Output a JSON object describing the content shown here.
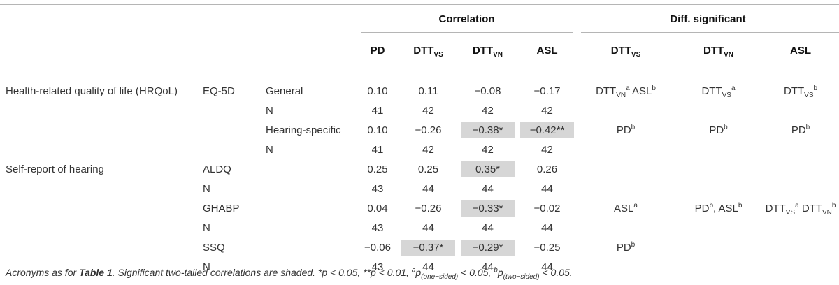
{
  "header": {
    "group_correlation": "Correlation",
    "group_diff": "Diff. significant",
    "columns": {
      "pd": "PD",
      "dtt": "DTT",
      "sub_vs": "VS",
      "sub_vn": "VN",
      "asl": "ASL"
    }
  },
  "rows": {
    "hrqol": {
      "label": "Health-related quality of life (HRQoL)",
      "measure": "EQ-5D",
      "general": {
        "label": "General",
        "pd": "0.10",
        "dtt_vs": "0.11",
        "dtt_vn": "−0.08",
        "asl": "−0.17"
      },
      "general_n": {
        "label": "N",
        "pd": "41",
        "dtt_vs": "42",
        "dtt_vn": "42",
        "asl": "42"
      },
      "hearing": {
        "label": "Hearing-specific",
        "pd": "0.10",
        "dtt_vs": "−0.26",
        "dtt_vn": "−0.38*",
        "asl": "−0.42**"
      },
      "hearing_n": {
        "label": "N",
        "pd": "41",
        "dtt_vs": "42",
        "dtt_vn": "42",
        "asl": "42"
      }
    },
    "selfreport": {
      "label": "Self-report of hearing",
      "aldq": {
        "label": "ALDQ",
        "pd": "0.25",
        "dtt_vs": "0.25",
        "dtt_vn": "0.35*",
        "asl": "0.26"
      },
      "aldq_n": {
        "label": "N",
        "pd": "43",
        "dtt_vs": "44",
        "dtt_vn": "44",
        "asl": "44"
      },
      "ghabp": {
        "label": "GHABP",
        "pd": "0.04",
        "dtt_vs": "−0.26",
        "dtt_vn": "−0.33*",
        "asl": "−0.02"
      },
      "ghabp_n": {
        "label": "N",
        "pd": "43",
        "dtt_vs": "44",
        "dtt_vn": "44",
        "asl": "44"
      },
      "ssq": {
        "label": "SSQ",
        "pd": "−0.06",
        "dtt_vs": "−0.37*",
        "dtt_vn": "−0.29*",
        "asl": "−0.25"
      },
      "ssq_n": {
        "label": "N",
        "pd": "43",
        "dtt_vs": "44",
        "dtt_vn": "44",
        "asl": "44"
      }
    }
  },
  "diff": {
    "DTT": "DTT",
    "ASL": "ASL",
    "PD": "PD",
    "VS": "VS",
    "VN": "VN",
    "a": "a",
    "b": "b",
    "comma": ", "
  },
  "footnote": {
    "part1": "Acronyms as for ",
    "table_ref": "Table 1",
    "part2": ". Significant two-tailed correlations are shaded. *p < 0.05, **p < 0.01, ",
    "sup_a": "a",
    "p1": "p",
    "sub_one": "(one−sided)",
    "part3": " < 0.05, ",
    "sup_b": "b",
    "p2": "p",
    "sub_two": "(two−sided)",
    "part4": " < 0.05."
  },
  "colors": {
    "shade": "#d6d6d6",
    "rule": "#b5b5b5",
    "text": "#333333"
  }
}
